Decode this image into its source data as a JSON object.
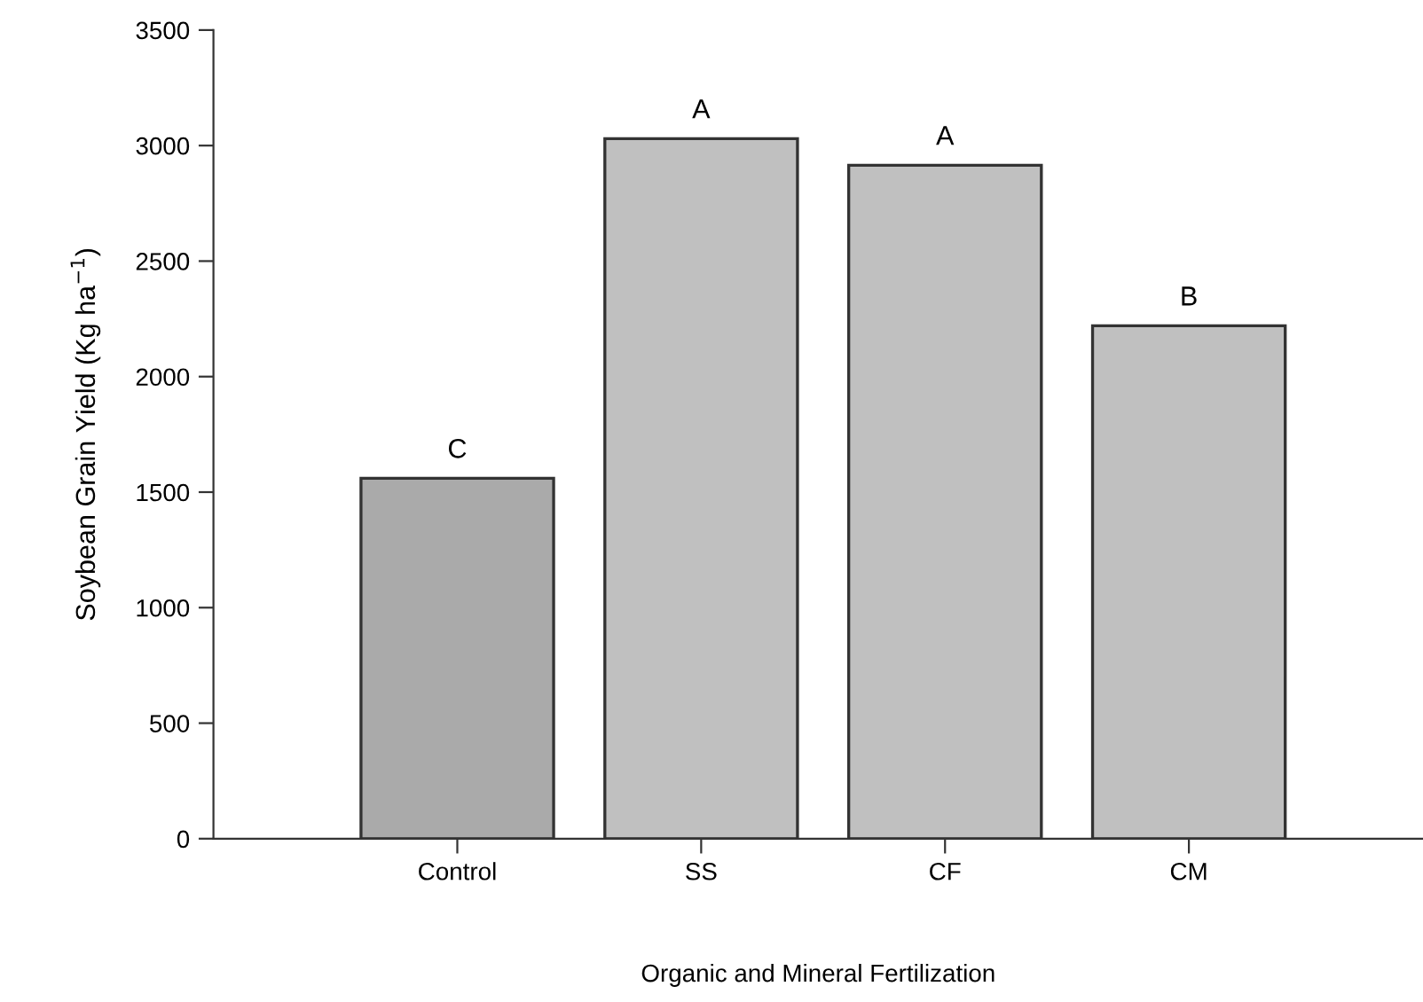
{
  "chart_data": {
    "type": "bar",
    "xlabel": "Organic and Mineral Fertilization",
    "ylabel": "Soybean Grain Yield (Kg ha$^{−1}$)",
    "categories": [
      "Control",
      "SS",
      "CF",
      "CM"
    ],
    "values": [
      1560,
      3030,
      2915,
      2220
    ],
    "colors": [
      "#aaaaaa",
      "#c0c0c0",
      "#c0c0c0",
      "#c0c0c0"
    ],
    "ylim": [
      0,
      3500
    ],
    "yticks": [
      0,
      500,
      1000,
      1500,
      2000,
      2500,
      3000,
      3500
    ],
    "grid": false,
    "legend": false,
    "annotations": [
      {
        "text": "C",
        "x": "Control",
        "y": 1560
      },
      {
        "text": "A",
        "x": "SS",
        "y": 3030
      },
      {
        "text": "A",
        "x": "CF",
        "y": 2915
      },
      {
        "text": "B",
        "x": "CM",
        "y": 2220
      }
    ]
  }
}
